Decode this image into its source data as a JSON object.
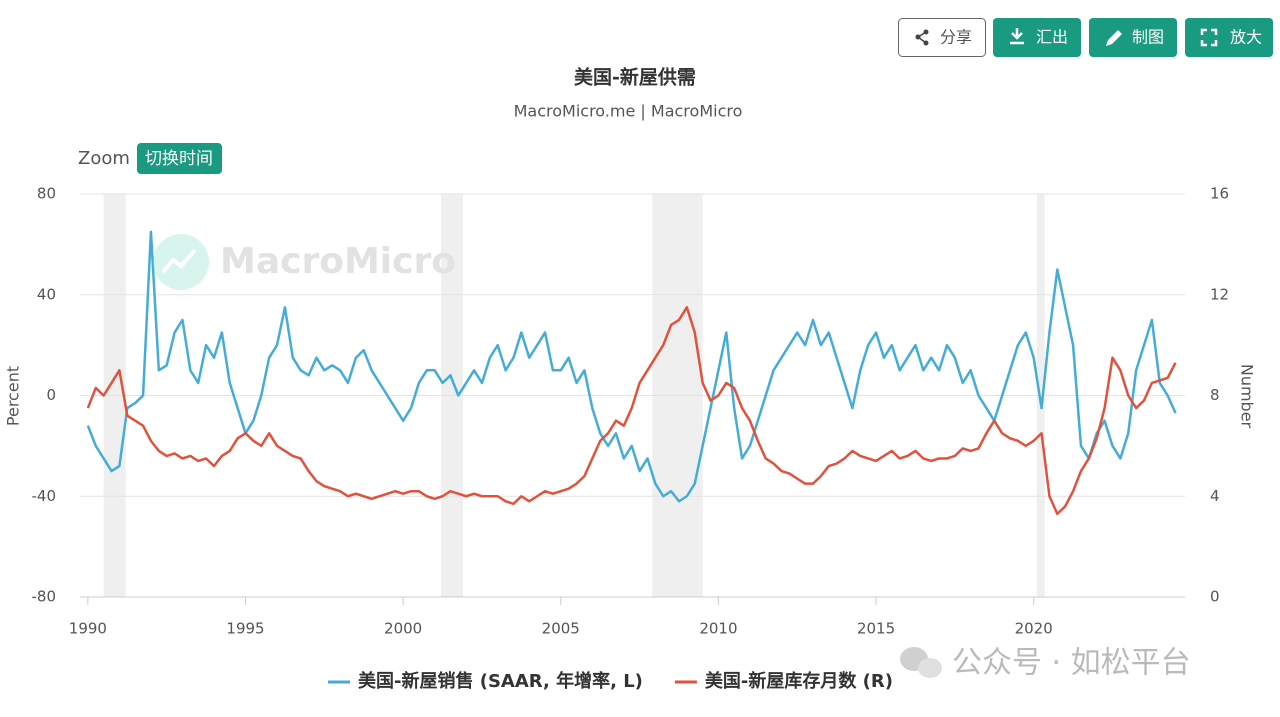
{
  "chart_data": {
    "type": "line",
    "title": "美国-新屋供需",
    "subtitle": "MacroMicro.me | MacroMicro",
    "zoom_label": "Zoom",
    "zoom_button": "切换时间",
    "buttons": [
      "分享",
      "汇出",
      "制图",
      "放大"
    ],
    "watermark": "MacroMicro",
    "footer_watermark": "公众号 · 如松平台",
    "ylabel": "Percent",
    "y2label": "Number",
    "xlim": [
      1989.75,
      2024.8
    ],
    "xticks": [
      1990,
      1995,
      2000,
      2005,
      2010,
      2015,
      2020
    ],
    "ylim": [
      -80,
      80
    ],
    "yticks": [
      -80,
      -40,
      0,
      40,
      80
    ],
    "y2lim": [
      0,
      16
    ],
    "y2ticks": [
      0,
      4,
      8,
      12,
      16
    ],
    "grid": true,
    "legend": "bottom",
    "recessions": [
      [
        1990.5,
        1991.2
      ],
      [
        2001.2,
        2001.9
      ],
      [
        2007.9,
        2009.5
      ],
      [
        2020.1,
        2020.35
      ]
    ],
    "x": [
      1990,
      1990.25,
      1990.5,
      1990.75,
      1991,
      1991.25,
      1991.5,
      1991.75,
      1992,
      1992.25,
      1992.5,
      1992.75,
      1993,
      1993.25,
      1993.5,
      1993.75,
      1994,
      1994.25,
      1994.5,
      1994.75,
      1995,
      1995.25,
      1995.5,
      1995.75,
      1996,
      1996.25,
      1996.5,
      1996.75,
      1997,
      1997.25,
      1997.5,
      1997.75,
      1998,
      1998.25,
      1998.5,
      1998.75,
      1999,
      1999.25,
      1999.5,
      1999.75,
      2000,
      2000.25,
      2000.5,
      2000.75,
      2001,
      2001.25,
      2001.5,
      2001.75,
      2002,
      2002.25,
      2002.5,
      2002.75,
      2003,
      2003.25,
      2003.5,
      2003.75,
      2004,
      2004.25,
      2004.5,
      2004.75,
      2005,
      2005.25,
      2005.5,
      2005.75,
      2006,
      2006.25,
      2006.5,
      2006.75,
      2007,
      2007.25,
      2007.5,
      2007.75,
      2008,
      2008.25,
      2008.5,
      2008.75,
      2009,
      2009.25,
      2009.5,
      2009.75,
      2010,
      2010.25,
      2010.5,
      2010.75,
      2011,
      2011.25,
      2011.5,
      2011.75,
      2012,
      2012.25,
      2012.5,
      2012.75,
      2013,
      2013.25,
      2013.5,
      2013.75,
      2014,
      2014.25,
      2014.5,
      2014.75,
      2015,
      2015.25,
      2015.5,
      2015.75,
      2016,
      2016.25,
      2016.5,
      2016.75,
      2017,
      2017.25,
      2017.5,
      2017.75,
      2018,
      2018.25,
      2018.5,
      2018.75,
      2019,
      2019.25,
      2019.5,
      2019.75,
      2020,
      2020.25,
      2020.5,
      2020.75,
      2021,
      2021.25,
      2021.5,
      2021.75,
      2022,
      2022.25,
      2022.5,
      2022.75,
      2023,
      2023.25,
      2023.5,
      2023.75,
      2024,
      2024.25,
      2024.5
    ],
    "series": [
      {
        "name": "美国-新屋销售 (SAAR, 年增率, L)",
        "color": "#45acd8",
        "axis": "y",
        "values": [
          -12,
          -20,
          -25,
          -30,
          -28,
          -5,
          -3,
          0,
          65,
          10,
          12,
          25,
          30,
          10,
          5,
          20,
          15,
          25,
          5,
          -5,
          -15,
          -10,
          0,
          15,
          20,
          35,
          15,
          10,
          8,
          15,
          10,
          12,
          10,
          5,
          15,
          18,
          10,
          5,
          0,
          -5,
          -10,
          -5,
          5,
          10,
          10,
          5,
          8,
          0,
          5,
          10,
          5,
          15,
          20,
          10,
          15,
          25,
          15,
          20,
          25,
          10,
          10,
          15,
          5,
          10,
          -5,
          -15,
          -20,
          -15,
          -25,
          -20,
          -30,
          -25,
          -35,
          -40,
          -38,
          -42,
          -40,
          -35,
          -20,
          -5,
          10,
          25,
          -5,
          -25,
          -20,
          -10,
          0,
          10,
          15,
          20,
          25,
          20,
          30,
          20,
          25,
          15,
          5,
          -5,
          10,
          20,
          25,
          15,
          20,
          10,
          15,
          20,
          10,
          15,
          10,
          20,
          15,
          5,
          10,
          0,
          -5,
          -10,
          0,
          10,
          20,
          25,
          15,
          -5,
          25,
          50,
          35,
          20,
          -20,
          -25,
          -15,
          -10,
          -20,
          -25,
          -15,
          10,
          20,
          30,
          5,
          0,
          -7
        ]
      },
      {
        "name": "美国-新屋库存月数 (R)",
        "color": "#e0523c",
        "axis": "y2",
        "values": [
          7.5,
          8.3,
          8.0,
          8.5,
          9.0,
          7.2,
          7.0,
          6.8,
          6.2,
          5.8,
          5.6,
          5.7,
          5.5,
          5.6,
          5.4,
          5.5,
          5.2,
          5.6,
          5.8,
          6.3,
          6.5,
          6.2,
          6.0,
          6.5,
          6.0,
          5.8,
          5.6,
          5.5,
          5.0,
          4.6,
          4.4,
          4.3,
          4.2,
          4.0,
          4.1,
          4.0,
          3.9,
          4.0,
          4.1,
          4.2,
          4.1,
          4.2,
          4.2,
          4.0,
          3.9,
          4.0,
          4.2,
          4.1,
          4.0,
          4.1,
          4.0,
          4.0,
          4.0,
          3.8,
          3.7,
          4.0,
          3.8,
          4.0,
          4.2,
          4.1,
          4.2,
          4.3,
          4.5,
          4.8,
          5.5,
          6.2,
          6.5,
          7.0,
          6.8,
          7.5,
          8.5,
          9.0,
          9.5,
          10.0,
          10.8,
          11.0,
          11.5,
          10.5,
          8.5,
          7.8,
          8.0,
          8.5,
          8.3,
          7.5,
          7.0,
          6.2,
          5.5,
          5.3,
          5.0,
          4.9,
          4.7,
          4.5,
          4.5,
          4.8,
          5.2,
          5.3,
          5.5,
          5.8,
          5.6,
          5.5,
          5.4,
          5.6,
          5.8,
          5.5,
          5.6,
          5.8,
          5.5,
          5.4,
          5.5,
          5.5,
          5.6,
          5.9,
          5.8,
          5.9,
          6.5,
          7.0,
          6.5,
          6.3,
          6.2,
          6.0,
          6.2,
          6.5,
          4.0,
          3.3,
          3.6,
          4.2,
          5.0,
          5.5,
          6.3,
          7.5,
          9.5,
          9.0,
          8.0,
          7.5,
          7.8,
          8.5,
          8.6,
          8.7,
          9.3
        ]
      }
    ]
  }
}
